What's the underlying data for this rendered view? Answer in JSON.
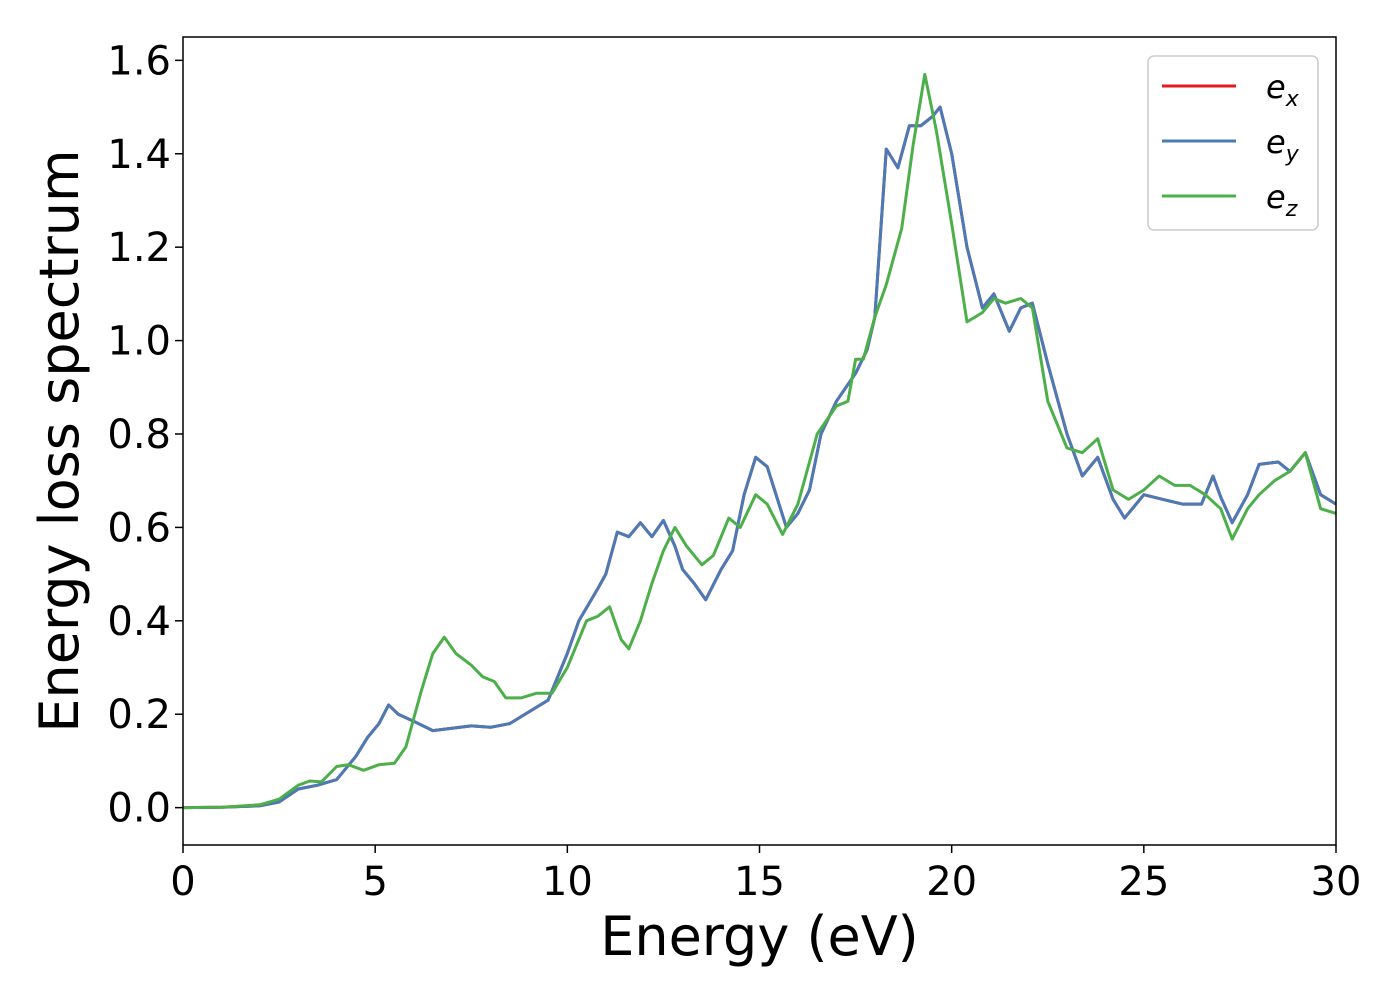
{
  "chart_data": {
    "type": "line",
    "xlabel": "Energy (eV)",
    "ylabel": "Energy loss spectrum",
    "xlim": [
      0,
      30
    ],
    "ylim": [
      -0.08,
      1.65
    ],
    "grid": false,
    "legend_position": "top-right",
    "x_ticks": [
      "0",
      "5",
      "10",
      "15",
      "20",
      "25",
      "30"
    ],
    "y_ticks": [
      "0.0",
      "0.2",
      "0.4",
      "0.6",
      "0.8",
      "1.0",
      "1.2",
      "1.4",
      "1.6"
    ],
    "series": [
      {
        "name_base": "e",
        "name_sub": "x",
        "color": "#e41a1c",
        "points": [
          [
            0,
            0
          ],
          [
            1,
            0.001
          ],
          [
            2,
            0.004
          ],
          [
            2.5,
            0.012
          ],
          [
            3,
            0.04
          ],
          [
            3.5,
            0.048
          ],
          [
            4,
            0.06
          ],
          [
            4.5,
            0.11
          ],
          [
            4.8,
            0.15
          ],
          [
            5.1,
            0.18
          ],
          [
            5.35,
            0.22
          ],
          [
            5.6,
            0.2
          ],
          [
            6,
            0.185
          ],
          [
            6.5,
            0.165
          ],
          [
            7,
            0.17
          ],
          [
            7.5,
            0.175
          ],
          [
            8,
            0.172
          ],
          [
            8.5,
            0.18
          ],
          [
            9,
            0.205
          ],
          [
            9.5,
            0.23
          ],
          [
            10,
            0.33
          ],
          [
            10.3,
            0.4
          ],
          [
            10.8,
            0.47
          ],
          [
            11,
            0.5
          ],
          [
            11.3,
            0.59
          ],
          [
            11.6,
            0.58
          ],
          [
            11.9,
            0.61
          ],
          [
            12.2,
            0.58
          ],
          [
            12.5,
            0.615
          ],
          [
            12.8,
            0.56
          ],
          [
            13,
            0.51
          ],
          [
            13.3,
            0.48
          ],
          [
            13.6,
            0.445
          ],
          [
            14,
            0.51
          ],
          [
            14.3,
            0.55
          ],
          [
            14.6,
            0.67
          ],
          [
            14.9,
            0.75
          ],
          [
            15.2,
            0.73
          ],
          [
            15.7,
            0.6
          ],
          [
            16,
            0.63
          ],
          [
            16.3,
            0.68
          ],
          [
            16.6,
            0.8
          ],
          [
            17,
            0.87
          ],
          [
            17.5,
            0.93
          ],
          [
            17.8,
            0.98
          ],
          [
            18,
            1.05
          ],
          [
            18.3,
            1.41
          ],
          [
            18.6,
            1.37
          ],
          [
            18.9,
            1.46
          ],
          [
            19.2,
            1.46
          ],
          [
            19.5,
            1.48
          ],
          [
            19.7,
            1.5
          ],
          [
            20,
            1.4
          ],
          [
            20.4,
            1.2
          ],
          [
            20.8,
            1.07
          ],
          [
            21.1,
            1.1
          ],
          [
            21.5,
            1.02
          ],
          [
            21.8,
            1.07
          ],
          [
            22.1,
            1.08
          ],
          [
            22.5,
            0.95
          ],
          [
            23,
            0.8
          ],
          [
            23.4,
            0.71
          ],
          [
            23.8,
            0.75
          ],
          [
            24.2,
            0.66
          ],
          [
            24.5,
            0.62
          ],
          [
            25,
            0.67
          ],
          [
            25.5,
            0.66
          ],
          [
            26,
            0.65
          ],
          [
            26.5,
            0.65
          ],
          [
            26.8,
            0.71
          ],
          [
            27,
            0.665
          ],
          [
            27.3,
            0.61
          ],
          [
            27.7,
            0.67
          ],
          [
            28,
            0.735
          ],
          [
            28.5,
            0.74
          ],
          [
            28.8,
            0.72
          ],
          [
            29.2,
            0.76
          ],
          [
            29.6,
            0.67
          ],
          [
            30,
            0.65
          ]
        ]
      },
      {
        "name_base": "e",
        "name_sub": "y",
        "color": "#4a7bb7",
        "points": [
          [
            0,
            0
          ],
          [
            1,
            0.001
          ],
          [
            2,
            0.004
          ],
          [
            2.5,
            0.012
          ],
          [
            3,
            0.04
          ],
          [
            3.5,
            0.048
          ],
          [
            4,
            0.06
          ],
          [
            4.5,
            0.11
          ],
          [
            4.8,
            0.15
          ],
          [
            5.1,
            0.18
          ],
          [
            5.35,
            0.22
          ],
          [
            5.6,
            0.2
          ],
          [
            6,
            0.185
          ],
          [
            6.5,
            0.165
          ],
          [
            7,
            0.17
          ],
          [
            7.5,
            0.175
          ],
          [
            8,
            0.172
          ],
          [
            8.5,
            0.18
          ],
          [
            9,
            0.205
          ],
          [
            9.5,
            0.23
          ],
          [
            10,
            0.33
          ],
          [
            10.3,
            0.4
          ],
          [
            10.8,
            0.47
          ],
          [
            11,
            0.5
          ],
          [
            11.3,
            0.59
          ],
          [
            11.6,
            0.58
          ],
          [
            11.9,
            0.61
          ],
          [
            12.2,
            0.58
          ],
          [
            12.5,
            0.615
          ],
          [
            12.8,
            0.56
          ],
          [
            13,
            0.51
          ],
          [
            13.3,
            0.48
          ],
          [
            13.6,
            0.445
          ],
          [
            14,
            0.51
          ],
          [
            14.3,
            0.55
          ],
          [
            14.6,
            0.67
          ],
          [
            14.9,
            0.75
          ],
          [
            15.2,
            0.73
          ],
          [
            15.7,
            0.6
          ],
          [
            16,
            0.63
          ],
          [
            16.3,
            0.68
          ],
          [
            16.6,
            0.8
          ],
          [
            17,
            0.87
          ],
          [
            17.5,
            0.93
          ],
          [
            17.8,
            0.98
          ],
          [
            18,
            1.05
          ],
          [
            18.3,
            1.41
          ],
          [
            18.6,
            1.37
          ],
          [
            18.9,
            1.46
          ],
          [
            19.2,
            1.46
          ],
          [
            19.5,
            1.48
          ],
          [
            19.7,
            1.5
          ],
          [
            20,
            1.4
          ],
          [
            20.4,
            1.2
          ],
          [
            20.8,
            1.07
          ],
          [
            21.1,
            1.1
          ],
          [
            21.5,
            1.02
          ],
          [
            21.8,
            1.07
          ],
          [
            22.1,
            1.08
          ],
          [
            22.5,
            0.95
          ],
          [
            23,
            0.8
          ],
          [
            23.4,
            0.71
          ],
          [
            23.8,
            0.75
          ],
          [
            24.2,
            0.66
          ],
          [
            24.5,
            0.62
          ],
          [
            25,
            0.67
          ],
          [
            25.5,
            0.66
          ],
          [
            26,
            0.65
          ],
          [
            26.5,
            0.65
          ],
          [
            26.8,
            0.71
          ],
          [
            27,
            0.665
          ],
          [
            27.3,
            0.61
          ],
          [
            27.7,
            0.67
          ],
          [
            28,
            0.735
          ],
          [
            28.5,
            0.74
          ],
          [
            28.8,
            0.72
          ],
          [
            29.2,
            0.76
          ],
          [
            29.6,
            0.67
          ],
          [
            30,
            0.65
          ]
        ]
      },
      {
        "name_base": "e",
        "name_sub": "z",
        "color": "#4daf4a",
        "points": [
          [
            0,
            0
          ],
          [
            1,
            0.001
          ],
          [
            2,
            0.006
          ],
          [
            2.5,
            0.018
          ],
          [
            3,
            0.048
          ],
          [
            3.3,
            0.057
          ],
          [
            3.6,
            0.055
          ],
          [
            4,
            0.088
          ],
          [
            4.3,
            0.092
          ],
          [
            4.7,
            0.08
          ],
          [
            5.1,
            0.092
          ],
          [
            5.5,
            0.095
          ],
          [
            5.8,
            0.13
          ],
          [
            6.2,
            0.25
          ],
          [
            6.5,
            0.33
          ],
          [
            6.8,
            0.365
          ],
          [
            7.1,
            0.33
          ],
          [
            7.5,
            0.305
          ],
          [
            7.8,
            0.28
          ],
          [
            8.1,
            0.27
          ],
          [
            8.4,
            0.235
          ],
          [
            8.8,
            0.235
          ],
          [
            9.2,
            0.245
          ],
          [
            9.6,
            0.245
          ],
          [
            10,
            0.3
          ],
          [
            10.5,
            0.4
          ],
          [
            10.8,
            0.41
          ],
          [
            11.1,
            0.43
          ],
          [
            11.4,
            0.36
          ],
          [
            11.6,
            0.34
          ],
          [
            11.9,
            0.4
          ],
          [
            12.2,
            0.48
          ],
          [
            12.5,
            0.55
          ],
          [
            12.8,
            0.6
          ],
          [
            13.1,
            0.56
          ],
          [
            13.5,
            0.52
          ],
          [
            13.8,
            0.54
          ],
          [
            14.2,
            0.62
          ],
          [
            14.5,
            0.6
          ],
          [
            14.9,
            0.67
          ],
          [
            15.2,
            0.65
          ],
          [
            15.6,
            0.585
          ],
          [
            16,
            0.65
          ],
          [
            16.5,
            0.8
          ],
          [
            17,
            0.86
          ],
          [
            17.3,
            0.87
          ],
          [
            17.5,
            0.96
          ],
          [
            17.7,
            0.96
          ],
          [
            18,
            1.05
          ],
          [
            18.3,
            1.12
          ],
          [
            18.7,
            1.24
          ],
          [
            19,
            1.42
          ],
          [
            19.3,
            1.57
          ],
          [
            19.6,
            1.45
          ],
          [
            20,
            1.25
          ],
          [
            20.4,
            1.04
          ],
          [
            20.8,
            1.06
          ],
          [
            21.1,
            1.09
          ],
          [
            21.4,
            1.08
          ],
          [
            21.8,
            1.09
          ],
          [
            22.1,
            1.07
          ],
          [
            22.5,
            0.87
          ],
          [
            23,
            0.77
          ],
          [
            23.4,
            0.76
          ],
          [
            23.8,
            0.79
          ],
          [
            24.2,
            0.68
          ],
          [
            24.6,
            0.66
          ],
          [
            25,
            0.68
          ],
          [
            25.4,
            0.71
          ],
          [
            25.8,
            0.69
          ],
          [
            26.2,
            0.69
          ],
          [
            26.6,
            0.67
          ],
          [
            27,
            0.64
          ],
          [
            27.3,
            0.575
          ],
          [
            27.7,
            0.64
          ],
          [
            28,
            0.67
          ],
          [
            28.4,
            0.7
          ],
          [
            28.8,
            0.72
          ],
          [
            29.2,
            0.76
          ],
          [
            29.6,
            0.64
          ],
          [
            30,
            0.63
          ]
        ]
      }
    ]
  }
}
